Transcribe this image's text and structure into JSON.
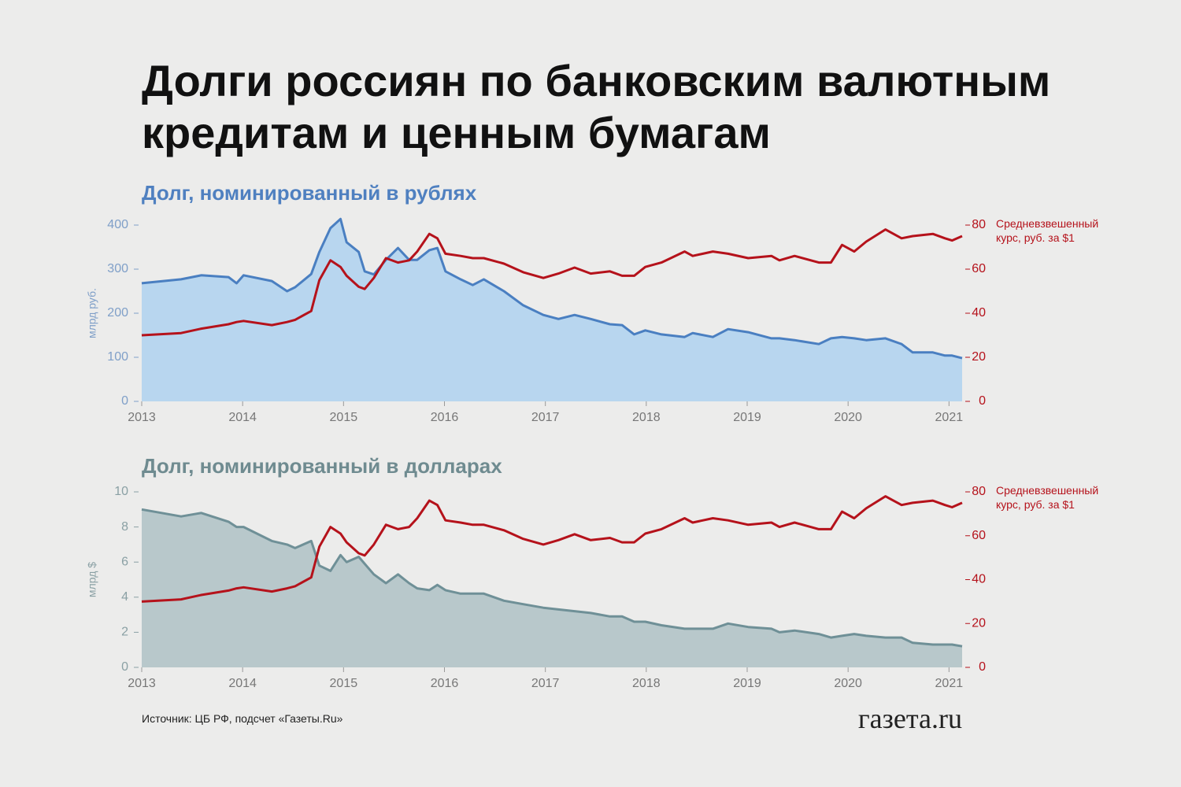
{
  "title": "Долги россиян по банковским валютным кредитам и ценным бумагам",
  "source": "Источник: ЦБ РФ, подсчет «Газеты.Ru»",
  "logo": "газета.ru",
  "chart_data": [
    {
      "type": "line",
      "subtitle": "Долг, номинированный в рублях",
      "y_label": "млрд руб.",
      "subtitle_color": "#4f80c0",
      "label_color": "#7f9fc8",
      "x": [
        2013.0,
        2013.39,
        2013.59,
        2013.86,
        2013.94,
        2014.01,
        2014.29,
        2014.44,
        2014.52,
        2014.68,
        2014.76,
        2014.87,
        2014.97,
        2015.03,
        2015.15,
        2015.21,
        2015.3,
        2015.42,
        2015.54,
        2015.65,
        2015.73,
        2015.85,
        2015.93,
        2016.01,
        2016.16,
        2016.28,
        2016.39,
        2016.59,
        2016.78,
        2016.98,
        2017.13,
        2017.29,
        2017.45,
        2017.64,
        2017.76,
        2017.88,
        2017.99,
        2018.15,
        2018.38,
        2018.46,
        2018.66,
        2018.81,
        2019.01,
        2019.24,
        2019.32,
        2019.47,
        2019.71,
        2019.83,
        2019.94,
        2020.06,
        2020.18,
        2020.37,
        2020.53,
        2020.64,
        2020.84,
        2020.96,
        2021.03,
        2021.13
      ],
      "xlim": [
        2013,
        2021.13
      ],
      "xticks": [
        2013,
        2014,
        2015,
        2016,
        2017,
        2018,
        2019,
        2020,
        2021
      ],
      "ylim": [
        0,
        400
      ],
      "yticks": [
        0,
        100,
        200,
        300,
        400
      ],
      "y2lim": [
        0,
        80
      ],
      "y2ticks": [
        0,
        20,
        40,
        60,
        80
      ],
      "series": [
        {
          "type": "area",
          "color": "#4a7fc1",
          "fill": "#b8d6ef",
          "values": [
            268,
            277,
            286,
            282,
            268,
            286,
            273,
            250,
            259,
            289,
            339,
            393,
            414,
            361,
            339,
            295,
            288,
            321,
            348,
            321,
            321,
            343,
            348,
            295,
            277,
            264,
            277,
            250,
            218,
            196,
            187,
            196,
            187,
            175,
            173,
            152,
            161,
            152,
            146,
            155,
            146,
            164,
            157,
            143,
            143,
            139,
            130,
            143,
            146,
            143,
            139,
            143,
            130,
            111,
            111,
            104,
            104,
            98
          ]
        },
        {
          "name": "Средневзвешенный курс, руб. за $1",
          "axis": "y2",
          "color": "#b5121b",
          "values": [
            30,
            31,
            33,
            35,
            36,
            36.5,
            34.6,
            36,
            37,
            41,
            55,
            64,
            61,
            57,
            52,
            51,
            56,
            65,
            63,
            64,
            68,
            76,
            74,
            67,
            66,
            65,
            65,
            62.5,
            58.6,
            56,
            58,
            60.7,
            58,
            59,
            57,
            57,
            61,
            63,
            68,
            66,
            68,
            67,
            65,
            66,
            64,
            66,
            63,
            63,
            71,
            68,
            72.5,
            78,
            74,
            75,
            76,
            74,
            73,
            75
          ]
        }
      ]
    },
    {
      "type": "line",
      "subtitle": "Долг, номинированный в долларах",
      "y_label": "млрд $",
      "subtitle_color": "#6f8b90",
      "label_color": "#8aa0a4",
      "x": [
        2013.0,
        2013.39,
        2013.59,
        2013.86,
        2013.94,
        2014.01,
        2014.29,
        2014.44,
        2014.52,
        2014.68,
        2014.76,
        2014.87,
        2014.97,
        2015.03,
        2015.15,
        2015.21,
        2015.3,
        2015.42,
        2015.54,
        2015.65,
        2015.73,
        2015.85,
        2015.93,
        2016.01,
        2016.16,
        2016.28,
        2016.39,
        2016.59,
        2016.78,
        2016.98,
        2017.13,
        2017.29,
        2017.45,
        2017.64,
        2017.76,
        2017.88,
        2017.99,
        2018.15,
        2018.38,
        2018.46,
        2018.66,
        2018.81,
        2019.01,
        2019.24,
        2019.32,
        2019.47,
        2019.71,
        2019.83,
        2019.94,
        2020.06,
        2020.18,
        2020.37,
        2020.53,
        2020.64,
        2020.84,
        2020.96,
        2021.03,
        2021.13
      ],
      "xlim": [
        2013,
        2021.13
      ],
      "xticks": [
        2013,
        2014,
        2015,
        2016,
        2017,
        2018,
        2019,
        2020,
        2021
      ],
      "ylim": [
        0,
        10
      ],
      "yticks": [
        0,
        2,
        4,
        6,
        8,
        10
      ],
      "y2lim": [
        0,
        80
      ],
      "y2ticks": [
        0,
        20,
        40,
        60,
        80
      ],
      "series": [
        {
          "type": "area",
          "color": "#6f9097",
          "fill": "#b8c8cb",
          "values": [
            9.0,
            8.6,
            8.8,
            8.3,
            8.0,
            8.0,
            7.2,
            7.0,
            6.8,
            7.2,
            5.8,
            5.5,
            6.4,
            6.0,
            6.3,
            5.9,
            5.3,
            4.8,
            5.3,
            4.8,
            4.5,
            4.4,
            4.7,
            4.4,
            4.2,
            4.2,
            4.2,
            3.8,
            3.6,
            3.4,
            3.3,
            3.2,
            3.1,
            2.9,
            2.9,
            2.6,
            2.6,
            2.4,
            2.2,
            2.2,
            2.2,
            2.5,
            2.3,
            2.2,
            2.0,
            2.1,
            1.9,
            1.7,
            1.8,
            1.9,
            1.8,
            1.7,
            1.7,
            1.4,
            1.3,
            1.3,
            1.3,
            1.2
          ]
        },
        {
          "name": "Средневзвешенный курс, руб. за $1",
          "axis": "y2",
          "color": "#b5121b",
          "values": [
            30,
            31,
            33,
            35,
            36,
            36.5,
            34.6,
            36,
            37,
            41,
            55,
            64,
            61,
            57,
            52,
            51,
            56,
            65,
            63,
            64,
            68,
            76,
            74,
            67,
            66,
            65,
            65,
            62.5,
            58.6,
            56,
            58,
            60.7,
            58,
            59,
            57,
            57,
            61,
            63,
            68,
            66,
            68,
            67,
            65,
            66,
            64,
            66,
            63,
            63,
            71,
            68,
            72.5,
            78,
            74,
            75,
            76,
            74,
            73,
            75
          ]
        }
      ]
    }
  ]
}
